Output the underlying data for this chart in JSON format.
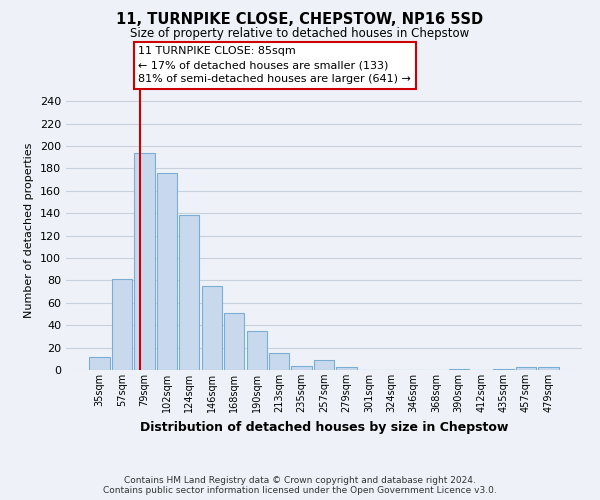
{
  "title": "11, TURNPIKE CLOSE, CHEPSTOW, NP16 5SD",
  "subtitle": "Size of property relative to detached houses in Chepstow",
  "xlabel": "Distribution of detached houses by size in Chepstow",
  "ylabel": "Number of detached properties",
  "bar_labels": [
    "35sqm",
    "57sqm",
    "79sqm",
    "102sqm",
    "124sqm",
    "146sqm",
    "168sqm",
    "190sqm",
    "213sqm",
    "235sqm",
    "257sqm",
    "279sqm",
    "301sqm",
    "324sqm",
    "346sqm",
    "368sqm",
    "390sqm",
    "412sqm",
    "435sqm",
    "457sqm",
    "479sqm"
  ],
  "bar_heights": [
    12,
    81,
    194,
    176,
    138,
    75,
    51,
    35,
    15,
    4,
    9,
    3,
    0,
    0,
    0,
    0,
    1,
    0,
    1,
    3,
    3
  ],
  "bar_color": "#c8d9ee",
  "bar_edge_color": "#7aaed4",
  "ylim": [
    0,
    250
  ],
  "yticks": [
    0,
    20,
    40,
    60,
    80,
    100,
    120,
    140,
    160,
    180,
    200,
    220,
    240
  ],
  "property_line_color": "#cc0000",
  "annotation_title": "11 TURNPIKE CLOSE: 85sqm",
  "annotation_line1": "← 17% of detached houses are smaller (133)",
  "annotation_line2": "81% of semi-detached houses are larger (641) →",
  "footer_line1": "Contains HM Land Registry data © Crown copyright and database right 2024.",
  "footer_line2": "Contains public sector information licensed under the Open Government Licence v3.0.",
  "background_color": "#eef2f8",
  "plot_bg_color": "#eef2f8",
  "grid_color": "#c8d0de"
}
